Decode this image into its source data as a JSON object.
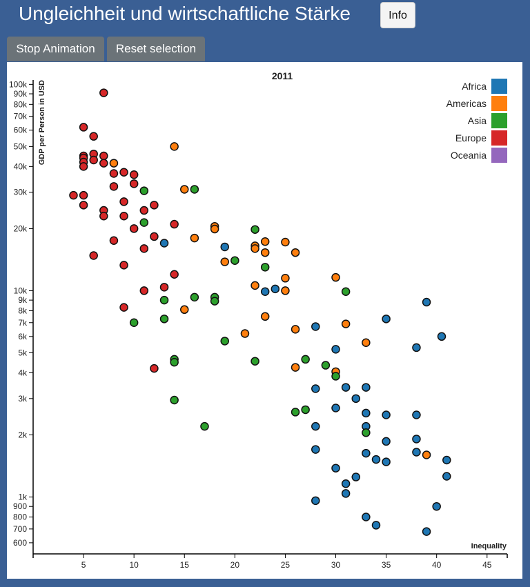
{
  "header": {
    "title": "Ungleichheit und wirtschaftliche Stärke",
    "info_label": "Info"
  },
  "controls": {
    "stop_label": "Stop Animation",
    "reset_label": "Reset selection"
  },
  "chart_data": {
    "type": "scatter",
    "title": "2011",
    "xlabel": "Inequality",
    "ylabel": "GDP per Person in USD",
    "xlim": [
      0,
      47
    ],
    "ylim": [
      530,
      105000
    ],
    "yscale": "log",
    "x_ticks": [
      5,
      10,
      15,
      20,
      25,
      30,
      35,
      40,
      45
    ],
    "y_ticks": [
      {
        "v": 600,
        "label": "600"
      },
      {
        "v": 700,
        "label": "700"
      },
      {
        "v": 800,
        "label": "800"
      },
      {
        "v": 900,
        "label": "900"
      },
      {
        "v": 1000,
        "label": "1k"
      },
      {
        "v": 2000,
        "label": "2k"
      },
      {
        "v": 3000,
        "label": "3k"
      },
      {
        "v": 4000,
        "label": "4k"
      },
      {
        "v": 5000,
        "label": "5k"
      },
      {
        "v": 6000,
        "label": "6k"
      },
      {
        "v": 7000,
        "label": "7k"
      },
      {
        "v": 8000,
        "label": "8k"
      },
      {
        "v": 9000,
        "label": "9k"
      },
      {
        "v": 10000,
        "label": "10k"
      },
      {
        "v": 20000,
        "label": "20k"
      },
      {
        "v": 30000,
        "label": "30k"
      },
      {
        "v": 40000,
        "label": "40k"
      },
      {
        "v": 50000,
        "label": "50k"
      },
      {
        "v": 60000,
        "label": "60k"
      },
      {
        "v": 70000,
        "label": "70k"
      },
      {
        "v": 80000,
        "label": "80k"
      },
      {
        "v": 90000,
        "label": "90k"
      },
      {
        "v": 100000,
        "label": "100k"
      }
    ],
    "legend_position": "top-right",
    "series": [
      {
        "name": "Africa",
        "color": "#1f77b4",
        "points": [
          [
            13,
            17000
          ],
          [
            19,
            16300
          ],
          [
            23,
            9900
          ],
          [
            24,
            10200
          ],
          [
            28,
            6700
          ],
          [
            28,
            3350
          ],
          [
            28,
            2200
          ],
          [
            28,
            1700
          ],
          [
            28,
            960
          ],
          [
            30,
            5200
          ],
          [
            30,
            2700
          ],
          [
            30,
            1380
          ],
          [
            31,
            3400
          ],
          [
            31,
            1160
          ],
          [
            31,
            1040
          ],
          [
            32,
            3000
          ],
          [
            32,
            1250
          ],
          [
            33,
            3400
          ],
          [
            33,
            2550
          ],
          [
            33,
            2200
          ],
          [
            33,
            1630
          ],
          [
            33,
            800
          ],
          [
            34,
            1520
          ],
          [
            34,
            730
          ],
          [
            35,
            7300
          ],
          [
            35,
            2500
          ],
          [
            35,
            1860
          ],
          [
            35,
            1480
          ],
          [
            38,
            5300
          ],
          [
            38,
            2500
          ],
          [
            38,
            1910
          ],
          [
            38,
            1650
          ],
          [
            39,
            8800
          ],
          [
            39,
            680
          ],
          [
            40,
            900
          ],
          [
            40.5,
            6000
          ],
          [
            41,
            1510
          ],
          [
            41,
            1260
          ]
        ]
      },
      {
        "name": "Americas",
        "color": "#ff7f0e",
        "points": [
          [
            8,
            41500
          ],
          [
            14,
            50000
          ],
          [
            15,
            31000
          ],
          [
            15,
            8100
          ],
          [
            16,
            18000
          ],
          [
            18,
            20500
          ],
          [
            18,
            19900
          ],
          [
            19,
            13800
          ],
          [
            21,
            6200
          ],
          [
            22,
            16500
          ],
          [
            22,
            16000
          ],
          [
            22,
            10600
          ],
          [
            23,
            17300
          ],
          [
            23,
            15300
          ],
          [
            23,
            7500
          ],
          [
            25,
            17200
          ],
          [
            25,
            11500
          ],
          [
            25,
            10000
          ],
          [
            26,
            15300
          ],
          [
            26,
            6500
          ],
          [
            26,
            4250
          ],
          [
            30,
            11600
          ],
          [
            30,
            4050
          ],
          [
            31,
            6900
          ],
          [
            33,
            5600
          ],
          [
            39,
            1600
          ]
        ]
      },
      {
        "name": "Asia",
        "color": "#2ca02c",
        "points": [
          [
            10,
            7000
          ],
          [
            11,
            30500
          ],
          [
            11,
            21400
          ],
          [
            13,
            9000
          ],
          [
            13,
            7300
          ],
          [
            14,
            4650
          ],
          [
            14,
            4500
          ],
          [
            14,
            2950
          ],
          [
            16,
            31000
          ],
          [
            16,
            9300
          ],
          [
            17,
            2200
          ],
          [
            18,
            9300
          ],
          [
            18,
            8900
          ],
          [
            19,
            5700
          ],
          [
            20,
            14000
          ],
          [
            22,
            19800
          ],
          [
            22,
            4550
          ],
          [
            23,
            13000
          ],
          [
            26,
            2580
          ],
          [
            27,
            4650
          ],
          [
            27,
            2650
          ],
          [
            29,
            4350
          ],
          [
            30,
            3850
          ],
          [
            31,
            9900
          ],
          [
            33,
            2050
          ]
        ]
      },
      {
        "name": "Europe",
        "color": "#d62728",
        "points": [
          [
            4,
            29000
          ],
          [
            5,
            62000
          ],
          [
            5,
            45000
          ],
          [
            5,
            44000
          ],
          [
            5,
            42000
          ],
          [
            5,
            40000
          ],
          [
            5,
            29000
          ],
          [
            5,
            26000
          ],
          [
            6,
            56000
          ],
          [
            6,
            46000
          ],
          [
            6,
            43000
          ],
          [
            6,
            14800
          ],
          [
            7,
            91000
          ],
          [
            7,
            45000
          ],
          [
            7,
            41500
          ],
          [
            7,
            24500
          ],
          [
            7,
            23000
          ],
          [
            8,
            37000
          ],
          [
            8,
            32000
          ],
          [
            8,
            17500
          ],
          [
            9,
            37500
          ],
          [
            9,
            27000
          ],
          [
            9,
            23000
          ],
          [
            9,
            13300
          ],
          [
            9,
            8300
          ],
          [
            10,
            36500
          ],
          [
            10,
            33000
          ],
          [
            10,
            20000
          ],
          [
            11,
            24500
          ],
          [
            11,
            16000
          ],
          [
            11,
            10000
          ],
          [
            12,
            26000
          ],
          [
            12,
            18300
          ],
          [
            12,
            4200
          ],
          [
            13,
            10400
          ],
          [
            14,
            21000
          ],
          [
            14,
            12000
          ]
        ]
      },
      {
        "name": "Oceania",
        "color": "#9467bd",
        "points": []
      }
    ]
  }
}
